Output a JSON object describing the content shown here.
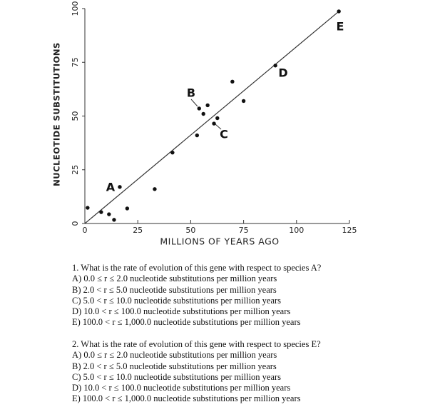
{
  "chart_data": {
    "type": "scatter",
    "x_label": "MILLIONS OF YEARS AGO",
    "y_label": "NUCLEOTIDE SUBSTITUTIONS",
    "x": [
      1.3,
      7.7,
      11.4,
      13.8,
      16.5,
      20,
      33,
      41.4,
      53,
      54,
      56,
      58,
      61,
      62.6,
      69.7,
      75,
      90,
      120
    ],
    "y": [
      7.3,
      5.3,
      4.3,
      1.7,
      17,
      7,
      16,
      33,
      41,
      53.5,
      51,
      55,
      46.5,
      49,
      66,
      57,
      73.5,
      98.7
    ],
    "color": "#111111",
    "trend_line": {
      "x": [
        0,
        120
      ],
      "y": [
        0,
        98.7
      ]
    },
    "annotations": [
      "A",
      "B",
      "C",
      "D",
      "E"
    ],
    "xlim": [
      0,
      125
    ],
    "ylim": [
      0,
      100
    ],
    "xticks": [
      0,
      25,
      50,
      75,
      100,
      125
    ],
    "yticks": [
      0,
      25,
      50,
      75,
      100
    ]
  },
  "questions": [
    {
      "stem": "1. What is the rate of evolution of this gene with respect to species A?",
      "options": [
        "A) 0.0 ≤ r ≤ 2.0 nucleotide substitutions per million years",
        "B) 2.0 < r ≤ 5.0 nucleotide substitutions per million years",
        "C) 5.0 < r ≤ 10.0 nucleotide substitutions per million years",
        "D) 10.0 < r ≤ 100.0 nucleotide substitutions per million years",
        "E) 100.0 < r ≤ 1,000.0 nucleotide substitutions per million years"
      ]
    },
    {
      "stem": "2. What is the rate of evolution of this gene with respect to species E?",
      "options": [
        "A) 0.0 ≤ r ≤ 2.0 nucleotide substitutions per million years",
        "B) 2.0 < r ≤ 5.0 nucleotide substitutions per million years",
        "C) 5.0 < r ≤ 10.0 nucleotide substitutions per million years",
        "D) 10.0 < r ≤ 100.0 nucleotide substitutions per million years",
        "E) 100.0 < r ≤ 1,000.0 nucleotide substitutions per million years"
      ]
    }
  ]
}
